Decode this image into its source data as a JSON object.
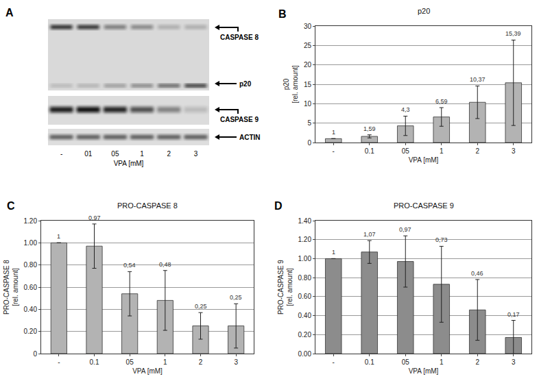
{
  "blot": {
    "panel": "A",
    "lanes": [
      "-",
      "01",
      "05",
      "1",
      "2",
      "3"
    ],
    "x_label": "VPA [mM]",
    "bands": [
      "CASPASE 8",
      "p20",
      "CASPASE 9",
      "ACTIN"
    ]
  },
  "chart_data": [
    {
      "type": "bar",
      "title": "p20",
      "annotations": [
        "B"
      ],
      "x_label": "VPA [mM]",
      "y_label": "p20\n[rel. amount]",
      "categories": [
        "-",
        "0.1",
        "05",
        "1",
        "2",
        "3"
      ],
      "values": [
        1,
        1.59,
        4.3,
        6.59,
        10.37,
        15.39
      ],
      "value_labels": [
        "1",
        "1,59",
        "4,3",
        "6,59",
        "10,37",
        "15,39"
      ],
      "errors": [
        0,
        0.4,
        2.5,
        2.4,
        4.2,
        11
      ],
      "color": "#b3b3b3",
      "ylim": [
        0,
        30
      ],
      "yticks": [
        0,
        5,
        10,
        15,
        20,
        25,
        30
      ],
      "grid": true,
      "data_labels": true
    },
    {
      "type": "bar",
      "title": "PRO-CASPASE 8",
      "annotations": [
        "C"
      ],
      "x_label": "VPA [mM]",
      "y_label": "PRO-CASPASE 8\n[rel. amount]",
      "categories": [
        "-",
        "0.1",
        "05",
        "1",
        "2",
        "3"
      ],
      "values": [
        1,
        0.97,
        0.54,
        0.48,
        0.25,
        0.25
      ],
      "value_labels": [
        "1",
        "0,97",
        "0,54",
        "0,48",
        "0,25",
        "0,25"
      ],
      "errors": [
        0,
        0.2,
        0.2,
        0.27,
        0.12,
        0.2
      ],
      "color": "#b3b3b3",
      "ylim": [
        0,
        1.2
      ],
      "yticks": [
        0,
        {
          "value": 0.2,
          "label": "0.20"
        },
        {
          "value": 0.4,
          "label": "0.40"
        },
        {
          "value": 0.6,
          "label": "0.60"
        },
        {
          "value": 0.8,
          "label": "0.80"
        },
        {
          "value": 1,
          "label": "1.00"
        },
        {
          "value": 1.2,
          "label": "1.20"
        }
      ],
      "grid": true,
      "data_labels": true
    },
    {
      "type": "bar",
      "title": "PRO-CASPASE 9",
      "annotations": [
        "D"
      ],
      "x_label": "VPA [mM]",
      "y_label": "PRO-CASPASE 9\n[rel. amount]",
      "categories": [
        "-",
        "0.1",
        "05",
        "1",
        "2",
        "3"
      ],
      "values": [
        1,
        1.07,
        0.97,
        0.73,
        0.46,
        0.17
      ],
      "value_labels": [
        "1",
        "1,07",
        "0,97",
        "0,73",
        "0,46",
        "0,17"
      ],
      "errors": [
        0,
        0.12,
        0.27,
        0.4,
        0.32,
        0.18
      ],
      "color": "#8c8c8c",
      "ylim": [
        0,
        1.4
      ],
      "yticks": [
        {
          "value": 0,
          "label": "0.00"
        },
        {
          "value": 0.2,
          "label": "0.20"
        },
        {
          "value": 0.4,
          "label": "0.40"
        },
        {
          "value": 0.6,
          "label": "0.60"
        },
        {
          "value": 0.8,
          "label": "0.80"
        },
        {
          "value": 1,
          "label": "1.00"
        },
        {
          "value": 1.2,
          "label": "1.20"
        },
        {
          "value": 1.4,
          "label": "1.40"
        }
      ],
      "grid": true,
      "data_labels": true
    }
  ]
}
